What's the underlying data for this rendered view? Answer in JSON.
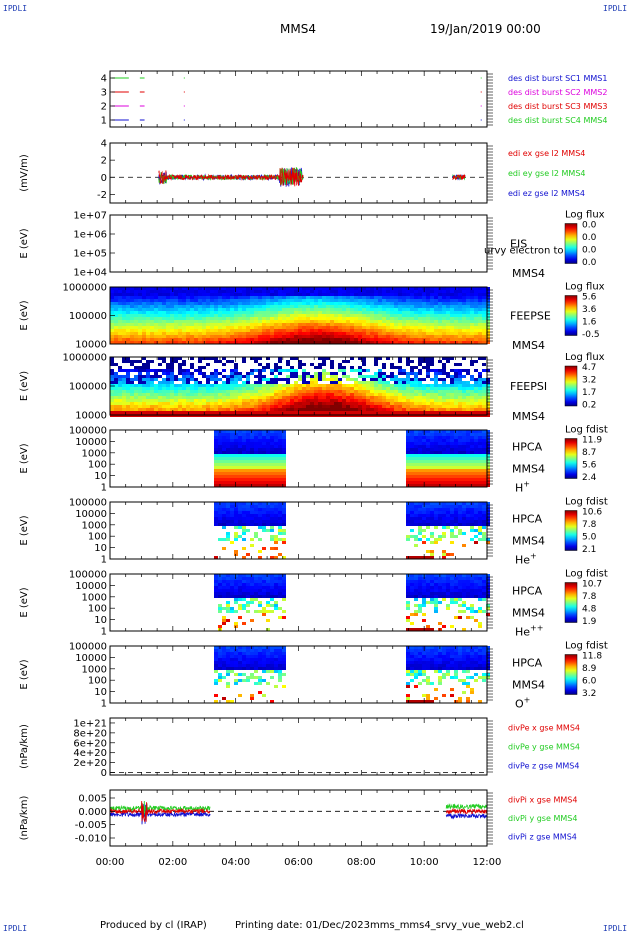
{
  "corner_label": "IPDLI",
  "header": {
    "spacecraft": "MMS4",
    "date": "19/Jan/2019 00:00"
  },
  "footer": {
    "producer": "Produced by cl (IRAP)",
    "printing": "Printing date: 01/Dec/2023",
    "script": "mms_mms4_srvy_vue_web2.cl"
  },
  "colors": {
    "red": "#e00000",
    "green": "#22cc22",
    "blue": "#1010d0",
    "magenta": "#dd00dd",
    "orange": "#ff8000"
  },
  "chart_data": [
    {
      "type": "line",
      "panel": "burst",
      "ylim": [
        0.5,
        4.5
      ],
      "yticks": [
        "1",
        "2",
        "3",
        "4"
      ],
      "legend": [
        {
          "text": "des dist burst SC1 MMS1",
          "color": "#1010d0"
        },
        {
          "text": "des dist burst SC2 MMS2",
          "color": "#dd00dd"
        },
        {
          "text": "des dist burst SC3 MMS3",
          "color": "#e00000"
        },
        {
          "text": "des dist burst SC4 MMS4",
          "color": "#22cc22"
        }
      ],
      "series": [
        {
          "y": 4,
          "color": "#22cc22",
          "intervals": [
            [
              0.05,
              0.6
            ],
            [
              0.95,
              1.1
            ]
          ]
        },
        {
          "y": 3,
          "color": "#e00000",
          "intervals": [
            [
              0.05,
              0.6
            ],
            [
              0.95,
              1.1
            ]
          ]
        },
        {
          "y": 2,
          "color": "#dd00dd",
          "intervals": [
            [
              0.05,
              0.6
            ],
            [
              0.95,
              1.1
            ]
          ]
        },
        {
          "y": 1,
          "color": "#1010d0",
          "intervals": [
            [
              0.05,
              0.6
            ],
            [
              0.95,
              1.1
            ]
          ]
        }
      ]
    },
    {
      "type": "line",
      "panel": "edi",
      "ylabel": "(mV/m)",
      "ylim": [
        -3,
        4
      ],
      "yticks": [
        "-2",
        "0",
        "2",
        "4"
      ],
      "legend": [
        {
          "text": "edi ex gse l2 MMS4",
          "color": "#e00000"
        },
        {
          "text": "edi ey gse l2 MMS4",
          "color": "#22cc22"
        },
        {
          "text": "edi ez gse l2 MMS4",
          "color": "#1010d0"
        }
      ],
      "activity_hours": [
        [
          1.55,
          6.15
        ],
        [
          10.9,
          11.3
        ]
      ]
    },
    {
      "type": "heatmap",
      "panel": "eis",
      "ylabel": "E (eV)",
      "ylog": true,
      "ylim": [
        10000,
        10000000
      ],
      "yticks": [
        "1e+04",
        "1e+05",
        "1e+06",
        "1e+07"
      ],
      "labels": [
        "EIS",
        "MMS4"
      ],
      "overlay_text": "urvy electron to",
      "colorbar": {
        "title": "Log flux",
        "ticks": [
          "0.0",
          "0.0",
          "0.0",
          "0.0"
        ]
      }
    },
    {
      "type": "heatmap",
      "panel": "feepse",
      "ylabel": "E (eV)",
      "ylog": true,
      "ylim": [
        10000,
        1000000
      ],
      "yticks": [
        "10000",
        "100000",
        "1000000"
      ],
      "labels": [
        "FEEPSE",
        "MMS4"
      ],
      "colorbar": {
        "title": "Log flux",
        "ticks": [
          "5.6",
          "3.6",
          "1.6",
          "-0.5"
        ]
      }
    },
    {
      "type": "heatmap",
      "panel": "feepsi",
      "ylabel": "E (eV)",
      "ylog": true,
      "ylim": [
        10000,
        1000000
      ],
      "yticks": [
        "10000",
        "100000",
        "1000000"
      ],
      "labels": [
        "FEEPSI",
        "MMS4"
      ],
      "colorbar": {
        "title": "Log flux",
        "ticks": [
          "4.7",
          "3.2",
          "1.7",
          "0.2"
        ]
      }
    },
    {
      "type": "heatmap",
      "panel": "hpca-h",
      "ylabel": "E (eV)",
      "ylog": true,
      "ylim": [
        1,
        100000
      ],
      "yticks": [
        "1",
        "10",
        "100",
        "1000",
        "10000",
        "100000"
      ],
      "labels": [
        "HPCA",
        "MMS4"
      ],
      "species_base": "H",
      "species_sup": "+",
      "colorbar": {
        "title": "Log fdist",
        "ticks": [
          "11.9",
          "8.7",
          "5.6",
          "2.4"
        ]
      },
      "data_hours": [
        [
          3.2,
          5.5
        ],
        [
          9.4,
          12
        ]
      ]
    },
    {
      "type": "heatmap",
      "panel": "hpca-he",
      "ylabel": "E (eV)",
      "ylog": true,
      "ylim": [
        1,
        100000
      ],
      "yticks": [
        "1",
        "10",
        "100",
        "1000",
        "10000",
        "100000"
      ],
      "labels": [
        "HPCA",
        "MMS4"
      ],
      "species_base": "He",
      "species_sup": "+",
      "colorbar": {
        "title": "Log fdist",
        "ticks": [
          "10.6",
          "7.8",
          "5.0",
          "2.1"
        ]
      },
      "data_hours": [
        [
          3.2,
          5.5
        ],
        [
          9.4,
          12
        ]
      ]
    },
    {
      "type": "heatmap",
      "panel": "hpca-hepp",
      "ylabel": "E (eV)",
      "ylog": true,
      "ylim": [
        1,
        100000
      ],
      "yticks": [
        "1",
        "10",
        "100",
        "1000",
        "10000",
        "100000"
      ],
      "labels": [
        "HPCA",
        "MMS4"
      ],
      "species_base": "He",
      "species_sup": "++",
      "colorbar": {
        "title": "Log fdist",
        "ticks": [
          "10.7",
          "7.8",
          "4.8",
          "1.9"
        ]
      },
      "data_hours": [
        [
          3.2,
          5.5
        ],
        [
          9.4,
          12
        ]
      ]
    },
    {
      "type": "heatmap",
      "panel": "hpca-o",
      "ylabel": "E (eV)",
      "ylog": true,
      "ylim": [
        1,
        100000
      ],
      "yticks": [
        "1",
        "10",
        "100",
        "1000",
        "10000",
        "100000"
      ],
      "labels": [
        "HPCA",
        "MMS4"
      ],
      "species_base": "O",
      "species_sup": "+",
      "colorbar": {
        "title": "Log fdist",
        "ticks": [
          "11.8",
          "8.9",
          "6.0",
          "3.2"
        ]
      },
      "data_hours": [
        [
          3.2,
          5.5
        ],
        [
          9.4,
          12
        ]
      ]
    },
    {
      "type": "line",
      "panel": "divpe",
      "ylabel": "(nPa/km)",
      "ylim": [
        -5e+19,
        1.1e+21
      ],
      "yticks": [
        "0",
        "2e+20",
        "4e+20",
        "6e+20",
        "8e+20",
        "1e+21"
      ],
      "legend": [
        {
          "text": "divPe x gse MMS4",
          "color": "#e00000"
        },
        {
          "text": "divPe y gse MMS4",
          "color": "#22cc22"
        },
        {
          "text": "divPe z gse MMS4",
          "color": "#1010d0"
        }
      ]
    },
    {
      "type": "line",
      "panel": "divpi",
      "ylabel": "(nPa/km)",
      "ylim": [
        -0.013,
        0.008
      ],
      "yticks": [
        "-0.010",
        "-0.005",
        "0.000",
        "0.005"
      ],
      "legend": [
        {
          "text": "divPi x gse MMS4",
          "color": "#e00000"
        },
        {
          "text": "divPi y gse MMS4",
          "color": "#22cc22"
        },
        {
          "text": "divPi z gse MMS4",
          "color": "#1010d0"
        }
      ],
      "activity_hours": [
        [
          0,
          3.2
        ],
        [
          10.7,
          12
        ]
      ]
    }
  ],
  "xaxis": {
    "ticks": [
      "00:00",
      "02:00",
      "04:00",
      "06:00",
      "08:00",
      "10:00",
      "12:00"
    ],
    "xlim": [
      0,
      12
    ]
  }
}
